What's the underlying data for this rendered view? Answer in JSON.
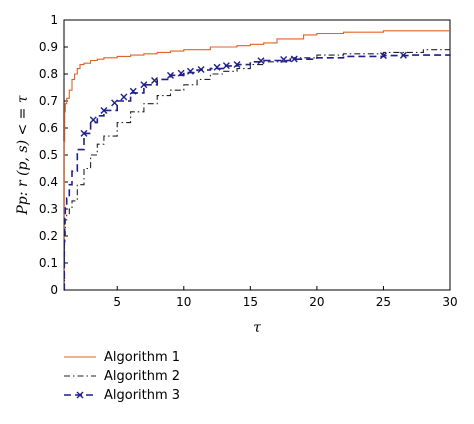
{
  "chart_data": {
    "type": "line",
    "title": "",
    "xlabel": "τ",
    "ylabel": "Pp: r (p, s) < = τ",
    "xlim": [
      1,
      30
    ],
    "ylim": [
      0,
      1
    ],
    "xticks": [
      5,
      10,
      15,
      20,
      25,
      30
    ],
    "yticks": [
      0,
      0.1,
      0.2,
      0.3,
      0.4,
      0.5,
      0.6,
      0.7,
      0.8,
      0.9,
      1
    ],
    "legend_position": "below",
    "series": [
      {
        "name": "Algorithm 1",
        "color": "#e0622a",
        "style": "solid",
        "x": [
          1,
          1.02,
          1.05,
          1.1,
          1.2,
          1.4,
          1.6,
          1.8,
          2.0,
          2.2,
          2.5,
          3.0,
          3.5,
          4.0,
          5.0,
          6.0,
          7.0,
          8.0,
          9.0,
          10.0,
          12.0,
          14.0,
          15.0,
          16.0,
          17.0,
          19.0,
          20.0,
          22.0,
          25.0,
          30.0
        ],
        "y": [
          0.0,
          0.55,
          0.66,
          0.69,
          0.71,
          0.74,
          0.78,
          0.8,
          0.82,
          0.835,
          0.84,
          0.85,
          0.855,
          0.86,
          0.865,
          0.87,
          0.875,
          0.88,
          0.885,
          0.89,
          0.9,
          0.905,
          0.91,
          0.915,
          0.93,
          0.945,
          0.95,
          0.955,
          0.96,
          0.96
        ]
      },
      {
        "name": "Algorithm 2",
        "color": "#222222",
        "style": "dashdot",
        "x": [
          1,
          1.03,
          1.1,
          1.2,
          1.4,
          1.6,
          2.0,
          2.5,
          3.0,
          3.5,
          4.0,
          5.0,
          6.0,
          7.0,
          8.0,
          9.0,
          10.0,
          11.0,
          12.0,
          13.0,
          14.0,
          15.0,
          16.0,
          18.0,
          20.0,
          22.0,
          25.0,
          28.0,
          30.0
        ],
        "y": [
          0.0,
          0.2,
          0.26,
          0.28,
          0.3,
          0.33,
          0.39,
          0.45,
          0.5,
          0.54,
          0.57,
          0.62,
          0.66,
          0.69,
          0.72,
          0.74,
          0.76,
          0.78,
          0.8,
          0.81,
          0.82,
          0.835,
          0.845,
          0.86,
          0.87,
          0.875,
          0.88,
          0.89,
          0.895
        ]
      },
      {
        "name": "Algorithm 3",
        "color": "#1f1f8c",
        "style": "dashed-x",
        "x": [
          1,
          1.02,
          1.05,
          1.1,
          1.2,
          1.4,
          1.6,
          2.0,
          2.5,
          3.0,
          3.5,
          4.0,
          5.0,
          6.0,
          7.0,
          8.0,
          9.0,
          10.0,
          11.0,
          12.0,
          13.0,
          14.0,
          15.0,
          16.0,
          18.0,
          20.0,
          22.0,
          25.0,
          27.0,
          30.0
        ],
        "y": [
          0.0,
          0.18,
          0.28,
          0.31,
          0.34,
          0.39,
          0.44,
          0.52,
          0.58,
          0.62,
          0.645,
          0.665,
          0.7,
          0.73,
          0.76,
          0.78,
          0.795,
          0.805,
          0.815,
          0.82,
          0.83,
          0.835,
          0.845,
          0.85,
          0.855,
          0.86,
          0.865,
          0.868,
          0.87,
          0.872
        ],
        "marker_x": [
          2.5,
          3.2,
          4.0,
          4.8,
          5.5,
          6.2,
          7.0,
          7.8,
          9.0,
          9.8,
          10.5,
          11.3,
          12.5,
          13.2,
          14.0,
          15.8,
          17.5,
          18.3,
          25.0,
          26.5
        ]
      }
    ]
  }
}
